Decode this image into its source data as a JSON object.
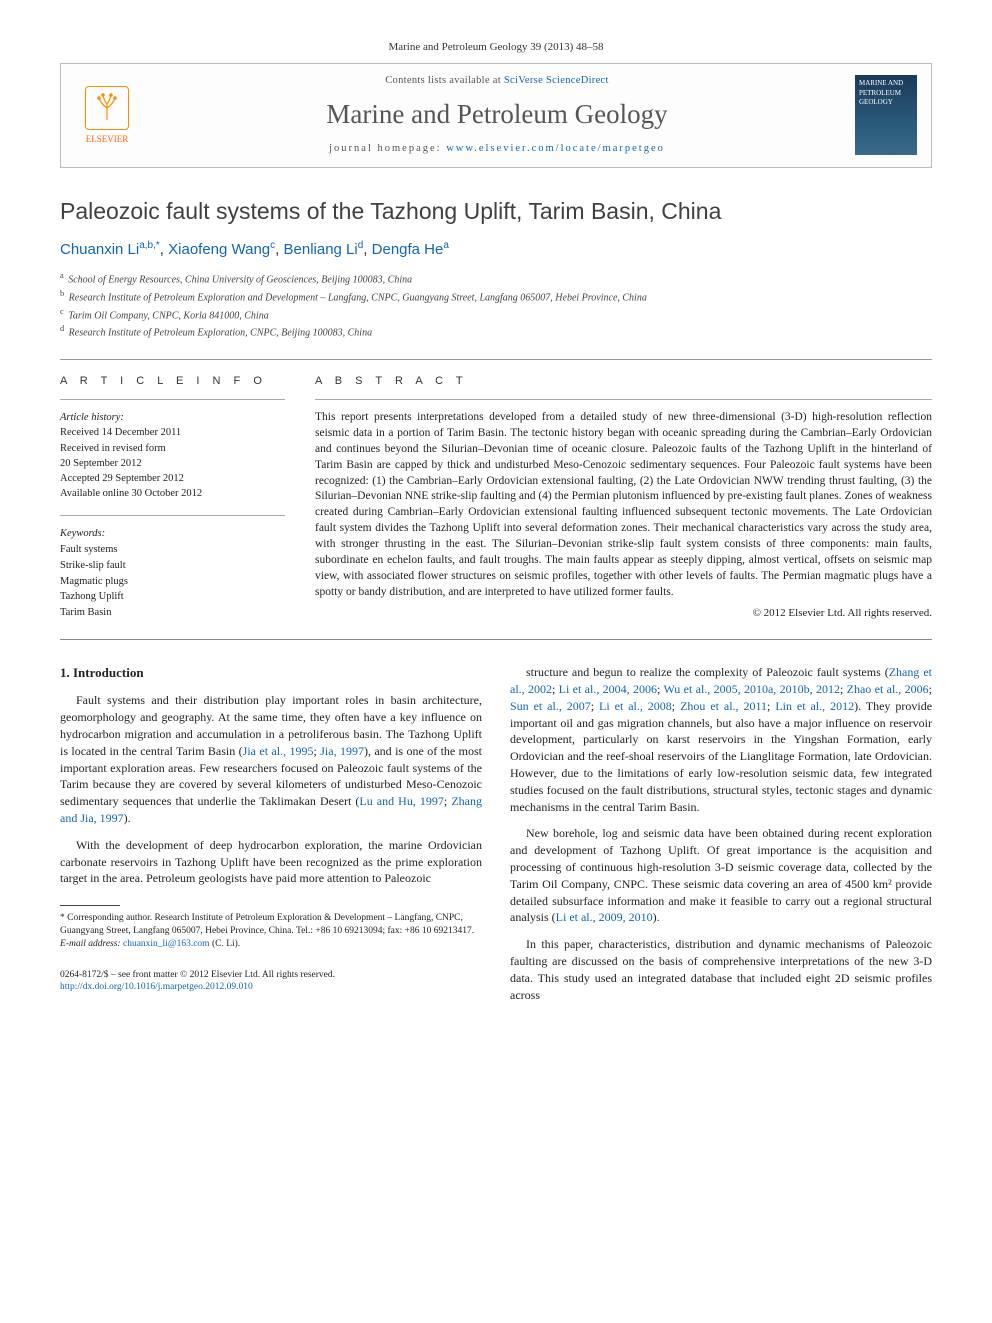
{
  "citation": "Marine and Petroleum Geology 39 (2013) 48–58",
  "banner": {
    "availableText": "Contents lists available at ",
    "availableLink": "SciVerse ScienceDirect",
    "journalName": "Marine and Petroleum Geology",
    "homepagePrefix": "journal homepage: ",
    "homepageUrl": "www.elsevier.com/locate/marpetgeo",
    "publisherName": "ELSEVIER",
    "coverTitle": "MARINE AND PETROLEUM GEOLOGY"
  },
  "article": {
    "title": "Paleozoic fault systems of the Tazhong Uplift, Tarim Basin, China",
    "authors": [
      {
        "name": "Chuanxin Li",
        "affMarks": "a,b,",
        "corr": "*"
      },
      {
        "name": "Xiaofeng Wang",
        "affMarks": "c",
        "corr": ""
      },
      {
        "name": "Benliang Li",
        "affMarks": "d",
        "corr": ""
      },
      {
        "name": "Dengfa He",
        "affMarks": "a",
        "corr": ""
      }
    ],
    "affiliations": [
      {
        "mark": "a",
        "text": "School of Energy Resources, China University of Geosciences, Beijing 100083, China"
      },
      {
        "mark": "b",
        "text": "Research Institute of Petroleum Exploration and Development – Langfang, CNPC, Guangyang Street, Langfang 065007, Hebei Province, China"
      },
      {
        "mark": "c",
        "text": "Tarim Oil Company, CNPC, Korla 841000, China"
      },
      {
        "mark": "d",
        "text": "Research Institute of Petroleum Exploration, CNPC, Beijing 100083, China"
      }
    ]
  },
  "info": {
    "heading": "A R T I C L E   I N F O",
    "historyLabel": "Article history:",
    "history": [
      "Received 14 December 2011",
      "Received in revised form",
      "20 September 2012",
      "Accepted 29 September 2012",
      "Available online 30 October 2012"
    ],
    "keywordsLabel": "Keywords:",
    "keywords": [
      "Fault systems",
      "Strike-slip fault",
      "Magmatic plugs",
      "Tazhong Uplift",
      "Tarim Basin"
    ]
  },
  "abstract": {
    "heading": "A B S T R A C T",
    "text": "This report presents interpretations developed from a detailed study of new three-dimensional (3-D) high-resolution reflection seismic data in a portion of Tarim Basin. The tectonic history began with oceanic spreading during the Cambrian–Early Ordovician and continues beyond the Silurian–Devonian time of oceanic closure. Paleozoic faults of the Tazhong Uplift in the hinterland of Tarim Basin are capped by thick and undisturbed Meso-Cenozoic sedimentary sequences. Four Paleozoic fault systems have been recognized: (1) the Cambrian–Early Ordovician extensional faulting, (2) the Late Ordovician NWW trending thrust faulting, (3) the Silurian–Devonian NNE strike-slip faulting and (4) the Permian plutonism influenced by pre-existing fault planes. Zones of weakness created during Cambrian–Early Ordovician extensional faulting influenced subsequent tectonic movements. The Late Ordovician fault system divides the Tazhong Uplift into several deformation zones. Their mechanical characteristics vary across the study area, with stronger thrusting in the east. The Silurian–Devonian strike-slip fault system consists of three components: main faults, subordinate en echelon faults, and fault troughs. The main faults appear as steeply dipping, almost vertical, offsets on seismic map view, with associated flower structures on seismic profiles, together with other levels of faults. The Permian magmatic plugs have a spotty or bandy distribution, and are interpreted to have utilized former faults.",
    "copyright": "© 2012 Elsevier Ltd. All rights reserved."
  },
  "body": {
    "section1Title": "1.  Introduction",
    "leftParas": [
      "Fault systems and their distribution play important roles in basin architecture, geomorphology and geography. At the same time, they often have a key influence on hydrocarbon migration and accumulation in a petroliferous basin. The Tazhong Uplift is located in the central Tarim Basin (|Jia et al., 1995|; |Jia, 1997|), and is one of the most important exploration areas. Few researchers focused on Paleozoic fault systems of the Tarim because they are covered by several kilometers of undisturbed Meso-Cenozoic sedimentary sequences that underlie the Taklimakan Desert (|Lu and Hu, 1997|; |Zhang and Jia, 1997|).",
      "With the development of deep hydrocarbon exploration, the marine Ordovician carbonate reservoirs in Tazhong Uplift have been recognized as the prime exploration target in the area. Petroleum geologists have paid more attention to Paleozoic"
    ],
    "rightParas": [
      "structure and begun to realize the complexity of Paleozoic fault systems (|Zhang et al., 2002|; |Li et al., 2004, 2006|; |Wu et al., 2005, 2010a, 2010b, 2012|; |Zhao et al., 2006|; |Sun et al., 2007|; |Li et al., 2008|; |Zhou et al., 2011|; |Lin et al., 2012|). They provide important oil and gas migration channels, but also have a major influence on reservoir development, particularly on karst reservoirs in the Yingshan Formation, early Ordovician and the reef-shoal reservoirs of the Lianglitage Formation, late Ordovician. However, due to the limitations of early low-resolution seismic data, few integrated studies focused on the fault distributions, structural styles, tectonic stages and dynamic mechanisms in the central Tarim Basin.",
      "New borehole, log and seismic data have been obtained during recent exploration and development of Tazhong Uplift. Of great importance is the acquisition and processing of continuous high-resolution 3-D seismic coverage data, collected by the Tarim Oil Company, CNPC. These seismic data covering an area of 4500 km² provide detailed subsurface information and make it feasible to carry out a regional structural analysis (|Li et al., 2009, 2010|).",
      "In this paper, characteristics, distribution and dynamic mechanisms of Paleozoic faulting are discussed on the basis of comprehensive interpretations of the new 3-D data. This study used an integrated database that included eight 2D seismic profiles across"
    ]
  },
  "footnote": {
    "corrLabel": "* Corresponding author. ",
    "corrText": "Research Institute of Petroleum Exploration & Development – Langfang, CNPC, Guangyang Street, Langfang 065007, Hebei Province, China. Tel.: +86 10 69213094; fax: +86 10 69213417.",
    "emailLabel": "E-mail address: ",
    "email": "chuanxin_li@163.com",
    "emailSuffix": " (C. Li)."
  },
  "bottom": {
    "line1": "0264-8172/$ – see front matter © 2012 Elsevier Ltd. All rights reserved.",
    "doiUrl": "http://dx.doi.org/10.1016/j.marpetgeo.2012.09.010"
  },
  "colors": {
    "link": "#1265b0",
    "text": "#222222",
    "muted": "#555555",
    "border": "#bbbbbb",
    "orange": "#ff6600"
  }
}
